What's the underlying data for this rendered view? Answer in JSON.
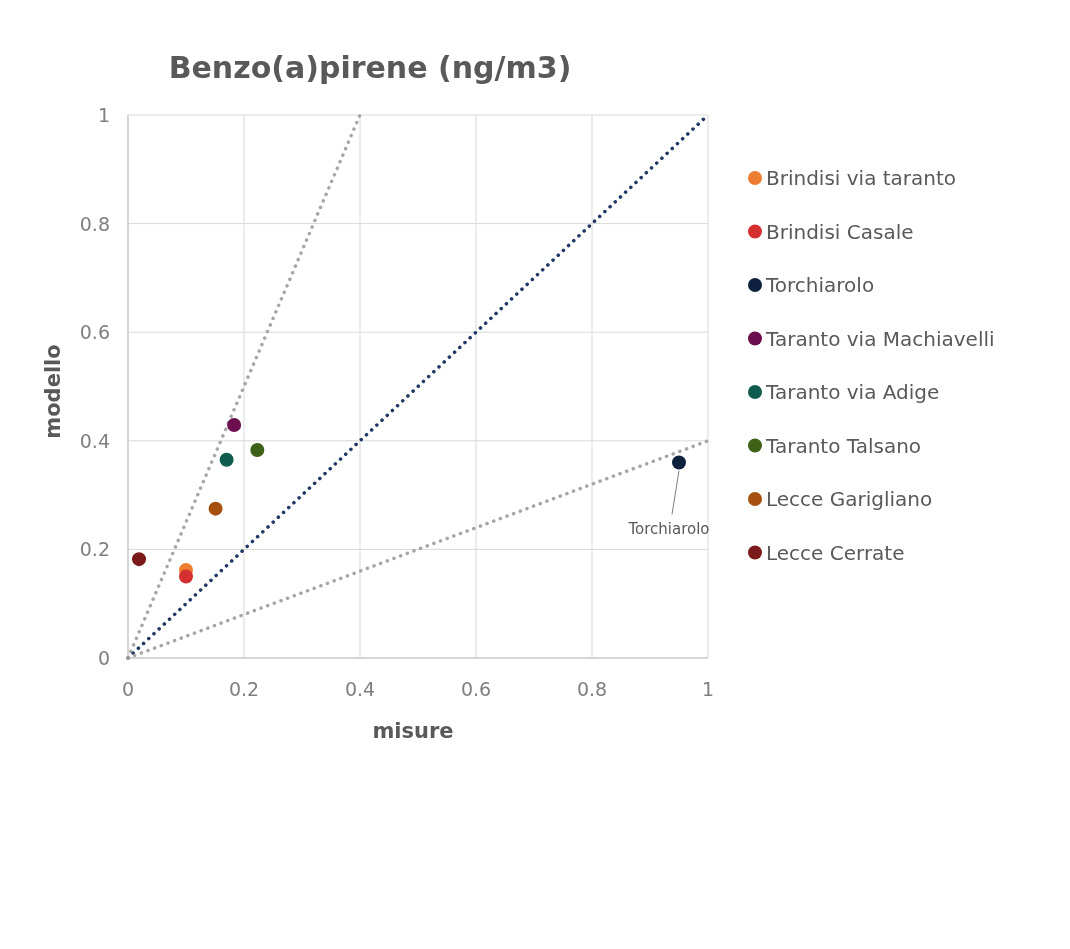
{
  "chart_data": {
    "type": "scatter",
    "title": "Benzo(a)pirene (ng/m3)",
    "xlabel": "misure",
    "ylabel": "modello",
    "xlim": [
      0,
      1
    ],
    "ylim": [
      0,
      1
    ],
    "xticks": [
      0,
      0.2,
      0.4,
      0.6,
      0.8,
      1
    ],
    "yticks": [
      0,
      0.2,
      0.4,
      0.6,
      0.8,
      1
    ],
    "grid": true,
    "legend": "right",
    "marker": "circle",
    "series": [
      {
        "name": "Brindisi via taranto",
        "color": "#ed7d31",
        "x": [
          0.1
        ],
        "values": [
          0.162
        ]
      },
      {
        "name": "Brindisi Casale",
        "color": "#d62f2f",
        "x": [
          0.1
        ],
        "values": [
          0.15
        ]
      },
      {
        "name": "Torchiarolo",
        "color": "#0d213f",
        "x": [
          0.95
        ],
        "values": [
          0.36
        ]
      },
      {
        "name": "Taranto via Machiavelli",
        "color": "#6b0f4f",
        "x": [
          0.183
        ],
        "values": [
          0.429
        ]
      },
      {
        "name": "Taranto via Adige",
        "color": "#0f5c4f",
        "x": [
          0.17
        ],
        "values": [
          0.365
        ]
      },
      {
        "name": "Taranto Talsano",
        "color": "#3d6116",
        "x": [
          0.223
        ],
        "values": [
          0.383
        ]
      },
      {
        "name": "Lecce Garigliano",
        "color": "#a5500f",
        "x": [
          0.151
        ],
        "values": [
          0.275
        ]
      },
      {
        "name": "Lecce Cerrate",
        "color": "#7b1a1a",
        "x": [
          0.019
        ],
        "values": [
          0.182
        ]
      },
      {
        "type": "line",
        "color": "#a6a6a6",
        "line_style": "dotted",
        "marker": "none",
        "x": [
          0,
          0.4
        ],
        "values": [
          0,
          1
        ]
      },
      {
        "type": "line",
        "color": "#1f3864",
        "line_style": "dotted",
        "marker": "none",
        "x": [
          0,
          1
        ],
        "values": [
          0,
          1
        ]
      },
      {
        "type": "line",
        "color": "#a6a6a6",
        "line_style": "dotted",
        "marker": "none",
        "x": [
          0,
          1
        ],
        "values": [
          0,
          0.4
        ]
      }
    ],
    "annotations": [
      {
        "text": "Torchiarolo",
        "x": 0.95,
        "y": 0.36
      }
    ]
  }
}
